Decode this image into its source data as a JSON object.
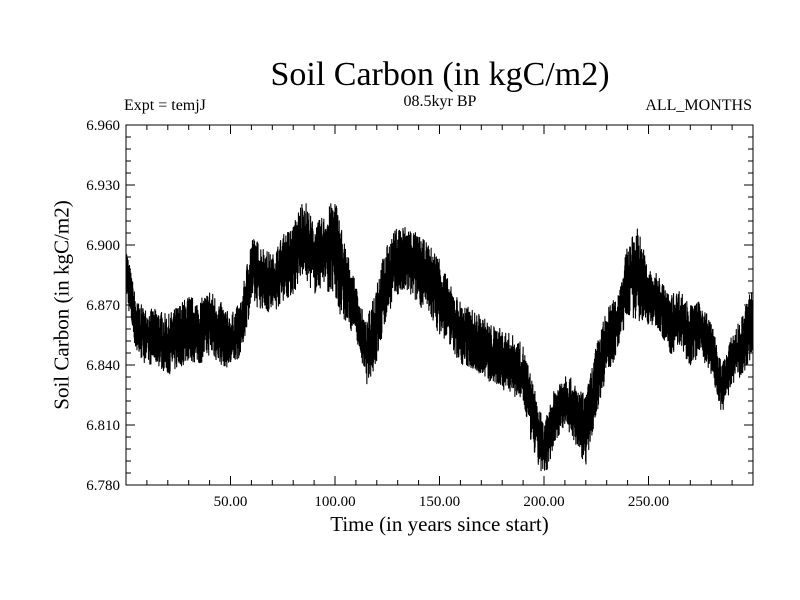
{
  "chart_data": {
    "type": "line",
    "title": "Soil Carbon (in kgC/m2)",
    "annotations": {
      "left": "Expt = temjJ",
      "center": "08.5kyr BP",
      "right": "ALL_MONTHS"
    },
    "xlabel": "Time (in years since start)",
    "ylabel": "Soil Carbon (in kgC/m2)",
    "xlim": [
      0,
      300
    ],
    "ylim": [
      6.78,
      6.96
    ],
    "x_ticks": [
      50,
      100,
      150,
      200,
      250
    ],
    "x_tick_labels": [
      "50.00",
      "100.00",
      "150.00",
      "200.00",
      "250.00"
    ],
    "y_ticks": [
      6.78,
      6.81,
      6.84,
      6.87,
      6.9,
      6.93,
      6.96
    ],
    "y_tick_labels": [
      "6.780",
      "6.810",
      "6.840",
      "6.870",
      "6.900",
      "6.930",
      "6.960"
    ],
    "series": [
      {
        "name": "Soil Carbon",
        "color": "#000000",
        "x": [
          0,
          5,
          10,
          15,
          20,
          25,
          30,
          35,
          40,
          45,
          50,
          55,
          60,
          65,
          70,
          75,
          80,
          85,
          90,
          95,
          100,
          105,
          110,
          115,
          120,
          125,
          130,
          135,
          140,
          145,
          150,
          155,
          160,
          165,
          170,
          175,
          180,
          185,
          190,
          195,
          200,
          205,
          210,
          215,
          220,
          225,
          230,
          235,
          240,
          245,
          250,
          255,
          260,
          265,
          270,
          275,
          280,
          285,
          290,
          295,
          300
        ],
        "y_low": [
          6.875,
          6.845,
          6.84,
          6.84,
          6.835,
          6.838,
          6.842,
          6.84,
          6.845,
          6.84,
          6.838,
          6.845,
          6.87,
          6.868,
          6.865,
          6.872,
          6.875,
          6.885,
          6.875,
          6.88,
          6.87,
          6.86,
          6.855,
          6.83,
          6.84,
          6.865,
          6.875,
          6.875,
          6.87,
          6.865,
          6.855,
          6.85,
          6.84,
          6.838,
          6.835,
          6.83,
          6.828,
          6.825,
          6.82,
          6.795,
          6.782,
          6.8,
          6.81,
          6.8,
          6.79,
          6.815,
          6.835,
          6.845,
          6.865,
          6.862,
          6.86,
          6.858,
          6.845,
          6.848,
          6.84,
          6.845,
          6.835,
          6.815,
          6.83,
          6.835,
          6.845
        ],
        "y_high": [
          6.9,
          6.872,
          6.868,
          6.868,
          6.865,
          6.87,
          6.875,
          6.872,
          6.878,
          6.872,
          6.865,
          6.872,
          6.905,
          6.9,
          6.895,
          6.905,
          6.91,
          6.925,
          6.91,
          6.915,
          6.925,
          6.9,
          6.88,
          6.86,
          6.885,
          6.9,
          6.91,
          6.91,
          6.905,
          6.9,
          6.895,
          6.88,
          6.872,
          6.868,
          6.865,
          6.86,
          6.858,
          6.855,
          6.85,
          6.83,
          6.81,
          6.828,
          6.838,
          6.83,
          6.825,
          6.85,
          6.868,
          6.875,
          6.9,
          6.91,
          6.888,
          6.885,
          6.875,
          6.878,
          6.87,
          6.872,
          6.862,
          6.84,
          6.855,
          6.865,
          6.882
        ]
      }
    ],
    "grid": false,
    "legend": "none"
  }
}
